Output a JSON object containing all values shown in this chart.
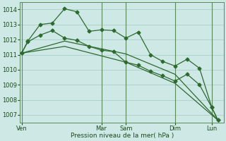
{
  "background_color": "#cde8e5",
  "grid_color": "#a8ceca",
  "line_color": "#2d6a2d",
  "xlabel": "Pression niveau de la mer( hPa )",
  "ylim": [
    1006.5,
    1014.5
  ],
  "yticks": [
    1007,
    1008,
    1009,
    1010,
    1011,
    1012,
    1013,
    1014
  ],
  "day_labels": [
    "Ven",
    "Mar",
    "Sam",
    "Dim",
    "Lun"
  ],
  "day_positions": [
    0,
    13,
    17,
    25,
    31
  ],
  "xlim": [
    -0.3,
    33
  ],
  "series1_x": [
    0,
    1,
    3,
    5,
    7,
    9,
    11,
    13,
    15,
    17,
    19,
    21,
    23,
    25,
    27,
    29,
    31,
    32
  ],
  "series1_y": [
    1011.1,
    1011.9,
    1013.0,
    1013.1,
    1014.05,
    1013.85,
    1012.55,
    1012.65,
    1012.6,
    1012.1,
    1012.5,
    1011.0,
    1010.55,
    1010.25,
    1010.7,
    1010.1,
    1007.5,
    1006.65
  ],
  "series2_x": [
    0,
    1,
    3,
    5,
    7,
    9,
    11,
    13,
    15,
    17,
    19,
    21,
    23,
    25,
    27,
    29,
    31,
    32
  ],
  "series2_y": [
    1011.1,
    1011.85,
    1012.3,
    1012.6,
    1012.1,
    1011.95,
    1011.55,
    1011.3,
    1011.2,
    1010.5,
    1010.3,
    1009.9,
    1009.6,
    1009.25,
    1009.7,
    1009.0,
    1007.5,
    1006.65
  ],
  "series3_x": [
    0,
    7,
    17,
    25,
    32
  ],
  "series3_y": [
    1011.1,
    1011.9,
    1011.05,
    1009.7,
    1006.65
  ],
  "series4_x": [
    0,
    7,
    17,
    25,
    32
  ],
  "series4_y": [
    1011.1,
    1011.55,
    1010.5,
    1009.1,
    1006.65
  ],
  "vline_x": [
    0,
    13,
    17,
    25,
    31
  ],
  "markersize": 2.5
}
